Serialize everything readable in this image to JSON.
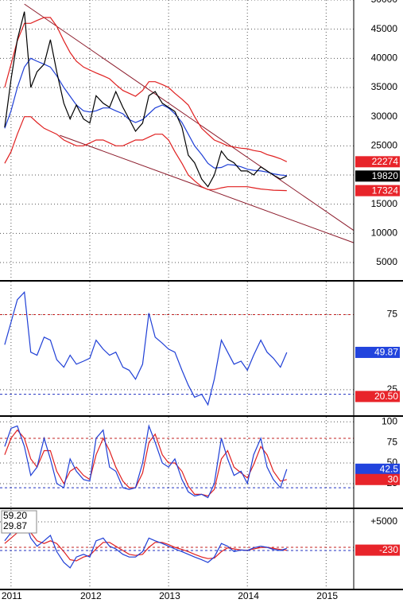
{
  "chart_data": [
    {
      "type": "line",
      "x": [
        2010.92,
        2011.0,
        2011.08,
        2011.17,
        2011.25,
        2011.33,
        2011.42,
        2011.5,
        2011.58,
        2011.67,
        2011.75,
        2011.83,
        2011.92,
        2012.0,
        2012.08,
        2012.17,
        2012.25,
        2012.33,
        2012.42,
        2012.5,
        2012.58,
        2012.67,
        2012.75,
        2012.83,
        2012.92,
        2013.0,
        2013.08,
        2013.17,
        2013.25,
        2013.33,
        2013.42,
        2013.5,
        2013.58,
        2013.67,
        2013.75,
        2013.83,
        2013.92,
        2014.0,
        2014.08,
        2014.17,
        2014.25,
        2014.33,
        2014.42,
        2014.5
      ],
      "xlim": [
        2010.86,
        2015.35
      ],
      "xticks": [
        2011,
        2012,
        2013,
        2014,
        2015
      ],
      "ylim": [
        2000,
        50000
      ],
      "yticks": [
        50000,
        45000,
        40000,
        35000,
        30000,
        25000,
        20000,
        15000,
        10000,
        5000
      ],
      "series": [
        {
          "color": "#e02020",
          "values": [
            35000,
            39000,
            43000,
            46000,
            46000,
            46500,
            47000,
            47000,
            45500,
            43000,
            41000,
            39500,
            38500,
            38000,
            37500,
            37000,
            36500,
            35500,
            34500,
            34000,
            33500,
            34500,
            36000,
            36000,
            35500,
            35000,
            34000,
            33000,
            32000,
            30000,
            28000,
            27000,
            26000,
            25500,
            25000,
            24800,
            24600,
            24500,
            24200,
            24000,
            23500,
            23200,
            22800,
            22274
          ]
        },
        {
          "color": "#e02020",
          "values": [
            22000,
            24000,
            27000,
            30000,
            30000,
            29000,
            28000,
            27500,
            27000,
            26000,
            25500,
            25000,
            25000,
            25500,
            26000,
            26000,
            25500,
            25000,
            25000,
            25500,
            26000,
            26000,
            26500,
            27000,
            27000,
            26000,
            24000,
            22000,
            20000,
            19000,
            18000,
            17500,
            17500,
            17800,
            18000,
            18000,
            18000,
            18000,
            17800,
            17600,
            17500,
            17400,
            17350,
            17324
          ]
        },
        {
          "color": "#1f3fd6",
          "values": [
            28000,
            31000,
            35000,
            38500,
            40000,
            39500,
            39000,
            38500,
            37000,
            35000,
            33500,
            32000,
            31000,
            30800,
            31000,
            31500,
            31500,
            31000,
            30500,
            29500,
            29000,
            29500,
            30500,
            31500,
            32000,
            31500,
            30500,
            29000,
            27000,
            25000,
            23500,
            22000,
            21200,
            21300,
            21800,
            21700,
            21400,
            21000,
            20800,
            20700,
            20500,
            20200,
            20000,
            19900
          ]
        },
        {
          "color": "#000000",
          "values": [
            28200,
            36400,
            43200,
            48000,
            35000,
            37700,
            39000,
            43200,
            37700,
            32300,
            29600,
            32000,
            29600,
            28900,
            33600,
            32300,
            31600,
            34300,
            31600,
            29600,
            27500,
            28900,
            33600,
            34300,
            32300,
            31600,
            30900,
            28200,
            23400,
            22100,
            19300,
            18000,
            20000,
            24100,
            22700,
            22100,
            20700,
            20700,
            20000,
            21400,
            20700,
            20000,
            19300,
            19820
          ]
        }
      ],
      "trend_lines": [
        {
          "color": "#8b1a2a",
          "x": [
            2011.17,
            2015.35
          ],
          "values": [
            49300,
            10500
          ]
        },
        {
          "color": "#8b1a2a",
          "x": [
            2011.62,
            2015.35
          ],
          "values": [
            26800,
            8400
          ]
        }
      ],
      "markers": [
        {
          "value": 22274,
          "color": "#e8242a"
        },
        {
          "value": 19820,
          "color": "#000000"
        },
        {
          "value": 17324,
          "color": "#e8242a"
        }
      ]
    },
    {
      "type": "line",
      "x": [
        2010.92,
        2011.0,
        2011.08,
        2011.17,
        2011.25,
        2011.33,
        2011.42,
        2011.5,
        2011.58,
        2011.67,
        2011.75,
        2011.83,
        2011.92,
        2012.0,
        2012.08,
        2012.17,
        2012.25,
        2012.33,
        2012.42,
        2012.5,
        2012.58,
        2012.67,
        2012.75,
        2012.83,
        2012.92,
        2013.0,
        2013.08,
        2013.17,
        2013.25,
        2013.33,
        2013.42,
        2013.5,
        2013.58,
        2013.67,
        2013.75,
        2013.83,
        2013.92,
        2014.0,
        2014.08,
        2014.17,
        2014.25,
        2014.33,
        2014.42,
        2014.5
      ],
      "xlim": [
        2010.86,
        2015.35
      ],
      "xticks": [
        2011,
        2012,
        2013,
        2014,
        2015
      ],
      "ylim": [
        8,
        97
      ],
      "yticks": [
        75,
        25
      ],
      "levels": [
        {
          "value": 75,
          "color": "#c02020"
        },
        {
          "value": 22,
          "color": "#2030c0"
        }
      ],
      "series": [
        {
          "color": "#1f3fd6",
          "values": [
            55,
            70,
            85,
            90,
            50,
            48,
            60,
            58,
            45,
            40,
            48,
            42,
            44,
            46,
            58,
            52,
            48,
            50,
            40,
            38,
            32,
            42,
            76,
            60,
            56,
            52,
            50,
            38,
            28,
            20,
            22,
            15,
            32,
            58,
            50,
            42,
            44,
            38,
            48,
            58,
            50,
            46,
            40,
            49.87
          ]
        }
      ],
      "markers": [
        {
          "value": 49.87,
          "color": "#2244dd"
        },
        {
          "value": 20.5,
          "label": "20.50",
          "color": "#e8242a"
        }
      ]
    },
    {
      "type": "line",
      "x": [
        2010.92,
        2011.0,
        2011.08,
        2011.17,
        2011.25,
        2011.33,
        2011.42,
        2011.5,
        2011.58,
        2011.67,
        2011.75,
        2011.83,
        2011.92,
        2012.0,
        2012.08,
        2012.17,
        2012.25,
        2012.33,
        2012.42,
        2012.5,
        2012.58,
        2012.67,
        2012.75,
        2012.83,
        2012.92,
        2013.0,
        2013.08,
        2013.17,
        2013.25,
        2013.33,
        2013.42,
        2013.5,
        2013.58,
        2013.67,
        2013.75,
        2013.83,
        2013.92,
        2014.0,
        2014.08,
        2014.17,
        2014.25,
        2014.33,
        2014.42,
        2014.5
      ],
      "xlim": [
        2010.86,
        2015.35
      ],
      "xticks": [
        2011,
        2012,
        2013,
        2014,
        2015
      ],
      "ylim": [
        -4,
        106
      ],
      "yticks": [
        100,
        75,
        50,
        25
      ],
      "levels": [
        {
          "value": 80,
          "color": "#c02020"
        },
        {
          "value": 20,
          "color": "#2030c0"
        }
      ],
      "series": [
        {
          "color": "#e02020",
          "values": [
            60,
            80,
            90,
            80,
            55,
            45,
            65,
            65,
            40,
            25,
            40,
            45,
            35,
            30,
            60,
            80,
            65,
            45,
            28,
            20,
            20,
            38,
            75,
            85,
            60,
            50,
            50,
            40,
            22,
            12,
            12,
            10,
            18,
            55,
            65,
            45,
            38,
            32,
            48,
            70,
            60,
            40,
            28,
            30
          ]
        },
        {
          "color": "#1f3fd6",
          "values": [
            70,
            92,
            95,
            70,
            35,
            45,
            80,
            55,
            25,
            20,
            55,
            40,
            30,
            28,
            80,
            90,
            45,
            40,
            20,
            18,
            20,
            50,
            95,
            75,
            50,
            45,
            55,
            30,
            15,
            10,
            12,
            8,
            25,
            80,
            55,
            35,
            40,
            25,
            60,
            80,
            45,
            30,
            20,
            42.5
          ]
        }
      ],
      "markers": [
        {
          "value": 42.5,
          "color": "#2244dd"
        },
        {
          "value": 30,
          "color": "#e8242a"
        }
      ]
    },
    {
      "type": "line",
      "x": [
        2010.92,
        2011.0,
        2011.08,
        2011.17,
        2011.25,
        2011.33,
        2011.42,
        2011.5,
        2011.58,
        2011.67,
        2011.75,
        2011.83,
        2011.92,
        2012.0,
        2012.08,
        2012.17,
        2012.25,
        2012.33,
        2012.42,
        2012.5,
        2012.58,
        2012.67,
        2012.75,
        2012.83,
        2012.92,
        2013.0,
        2013.08,
        2013.17,
        2013.25,
        2013.33,
        2013.42,
        2013.5,
        2013.58,
        2013.67,
        2013.75,
        2013.83,
        2013.92,
        2014.0,
        2014.08,
        2014.17,
        2014.25,
        2014.33,
        2014.42,
        2014.5
      ],
      "xlim": [
        2010.86,
        2015.35
      ],
      "xticks": [
        2011,
        2012,
        2013,
        2014,
        2015
      ],
      "ylim": [
        -7350,
        7350
      ],
      "yticks": [
        {
          "value": 5000,
          "label": "+5000"
        }
      ],
      "levels": [
        {
          "value": 300,
          "color": "#c02020"
        },
        {
          "value": -300,
          "color": "#2030c0"
        }
      ],
      "readouts": [
        "59.20",
        "29.87"
      ],
      "series": [
        {
          "color": "#e02020",
          "values": [
            1000,
            2000,
            3000,
            3500,
            3000,
            1500,
            1000,
            1500,
            1000,
            -500,
            -2000,
            -2200,
            -1500,
            -1200,
            0,
            1200,
            1200,
            500,
            -300,
            -1000,
            -1200,
            -1000,
            300,
            1200,
            1200,
            800,
            300,
            -100,
            -500,
            -1000,
            -1500,
            -1800,
            -1700,
            -500,
            200,
            0,
            -200,
            -250,
            0,
            250,
            300,
            100,
            -100,
            -230
          ]
        },
        {
          "color": "#1f3fd6",
          "values": [
            1500,
            3000,
            4000,
            5500,
            2000,
            500,
            1500,
            2500,
            -500,
            -2500,
            -3500,
            -1500,
            -1000,
            -1500,
            1500,
            2000,
            500,
            0,
            -1000,
            -1500,
            -1500,
            -500,
            2000,
            1500,
            1000,
            500,
            0,
            -500,
            -1000,
            -1500,
            -2000,
            -2500,
            -1500,
            1000,
            500,
            -500,
            -200,
            -300,
            200,
            500,
            300,
            -100,
            -300,
            100
          ]
        }
      ],
      "markers": [
        {
          "value": -230,
          "color": "#e8242a"
        }
      ],
      "x_labels": true
    }
  ]
}
